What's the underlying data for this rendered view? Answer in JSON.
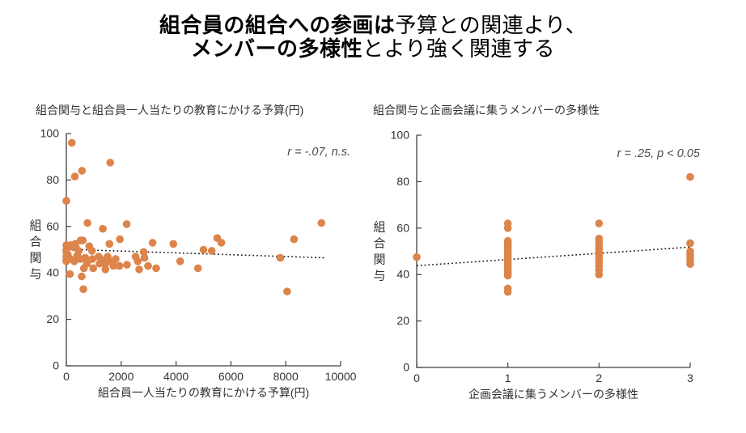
{
  "header": {
    "line1_bold": "組合員の組合への参画は",
    "line1_rest": "予算との関連より、",
    "line2_bold": "メンバーの多様性",
    "line2_rest": "とより強く関連する"
  },
  "colors": {
    "dot": "#DC8449",
    "axis": "#3f3f3f",
    "trend": "#1a1a1a",
    "tick_text": "#333333",
    "label_text": "#303030",
    "annotation_text": "#4a4a4a"
  },
  "chart_data": [
    {
      "type": "scatter",
      "title": "組合関与と組合員一人当たりの教育にかける予算(円)",
      "xlabel": "組合員一人当たりの教育にかける予算(円)",
      "ylabel": "組合関与",
      "annotation": "r = -.07, n.s.",
      "xlim": [
        0,
        10000
      ],
      "ylim": [
        0,
        100
      ],
      "xticks": [
        0,
        2000,
        4000,
        6000,
        8000,
        10000
      ],
      "yticks": [
        0,
        20,
        40,
        60,
        80,
        100
      ],
      "grid": false,
      "legend": "none",
      "trendline": {
        "style": "dotted",
        "x": [
          0,
          9400
        ],
        "y": [
          50.2,
          46.5
        ]
      },
      "points": [
        [
          200,
          96
        ],
        [
          1600,
          87.5
        ],
        [
          570,
          84
        ],
        [
          310,
          81.5
        ],
        [
          0,
          71
        ],
        [
          770,
          61.5
        ],
        [
          1330,
          59
        ],
        [
          2200,
          61
        ],
        [
          9300,
          61.5
        ],
        [
          520,
          54
        ],
        [
          600,
          54
        ],
        [
          1950,
          54.5
        ],
        [
          5500,
          55
        ],
        [
          8300,
          54.5
        ],
        [
          0,
          52
        ],
        [
          165,
          52
        ],
        [
          325,
          52.5
        ],
        [
          1570,
          52.5
        ],
        [
          3145,
          53
        ],
        [
          3900,
          52.5
        ],
        [
          5650,
          53
        ],
        [
          270,
          51
        ],
        [
          345,
          51
        ],
        [
          835,
          51.5
        ],
        [
          0,
          50
        ],
        [
          450,
          49.5
        ],
        [
          935,
          49.5
        ],
        [
          2820,
          49
        ],
        [
          5000,
          50
        ],
        [
          5300,
          49.5
        ],
        [
          0,
          49
        ],
        [
          50,
          48
        ],
        [
          400,
          47.5
        ],
        [
          1180,
          47
        ],
        [
          1505,
          47
        ],
        [
          2525,
          47
        ],
        [
          7800,
          46.5
        ],
        [
          0,
          47
        ],
        [
          150,
          46
        ],
        [
          520,
          46
        ],
        [
          690,
          46.5
        ],
        [
          950,
          46
        ],
        [
          1800,
          46
        ],
        [
          2850,
          46.5
        ],
        [
          0,
          45.5
        ],
        [
          295,
          45
        ],
        [
          1330,
          45.5
        ],
        [
          1620,
          45
        ],
        [
          2605,
          45
        ],
        [
          4150,
          45
        ],
        [
          0,
          45
        ],
        [
          750,
          44
        ],
        [
          1210,
          44
        ],
        [
          1425,
          44
        ],
        [
          640,
          42
        ],
        [
          980,
          42
        ],
        [
          1425,
          41.5
        ],
        [
          1720,
          43
        ],
        [
          1935,
          43
        ],
        [
          2210,
          43.5
        ],
        [
          2980,
          43
        ],
        [
          3274,
          42
        ],
        [
          2655,
          41.5
        ],
        [
          4800,
          42
        ],
        [
          130,
          39.5
        ],
        [
          560,
          38.5
        ],
        [
          620,
          33
        ],
        [
          8050,
          32
        ]
      ]
    },
    {
      "type": "scatter",
      "title": "組合関与と企画会議に集うメンバーの多様性",
      "xlabel": "企画会議に集うメンバーの多様性",
      "ylabel": "組合関与",
      "annotation": "r = .25, p < 0.05",
      "xlim": [
        0,
        3
      ],
      "ylim": [
        0,
        100
      ],
      "xticks": [
        0,
        1,
        2,
        3
      ],
      "yticks": [
        0,
        20,
        40,
        60,
        80,
        100
      ],
      "grid": false,
      "legend": "none",
      "trendline": {
        "style": "dotted",
        "x": [
          0,
          3
        ],
        "y": [
          43.8,
          51.8
        ]
      },
      "points": [
        [
          0,
          47.5
        ],
        [
          1,
          62
        ],
        [
          1,
          60
        ],
        [
          1,
          54.5
        ],
        [
          1,
          53.5
        ],
        [
          1,
          52.5
        ],
        [
          1,
          51.5
        ],
        [
          1,
          50.5
        ],
        [
          1,
          49.5
        ],
        [
          1,
          48.5
        ],
        [
          1,
          47.5
        ],
        [
          1,
          46.5
        ],
        [
          1,
          45.5
        ],
        [
          1,
          44.5
        ],
        [
          1,
          43.5
        ],
        [
          1,
          42.5
        ],
        [
          1,
          41.5
        ],
        [
          1,
          40.5
        ],
        [
          1,
          39.5
        ],
        [
          1,
          34
        ],
        [
          1,
          32.5
        ],
        [
          2,
          62
        ],
        [
          2,
          55.5
        ],
        [
          2,
          54
        ],
        [
          2,
          52.5
        ],
        [
          2,
          51
        ],
        [
          2,
          49.5
        ],
        [
          2,
          48
        ],
        [
          2,
          46.5
        ],
        [
          2,
          45
        ],
        [
          2,
          43.5
        ],
        [
          2,
          42
        ],
        [
          2,
          40
        ],
        [
          3,
          82
        ],
        [
          3,
          53.5
        ],
        [
          3,
          50
        ],
        [
          3,
          48.5
        ],
        [
          3,
          47
        ],
        [
          3,
          45.5
        ],
        [
          3,
          44.5
        ]
      ]
    }
  ]
}
